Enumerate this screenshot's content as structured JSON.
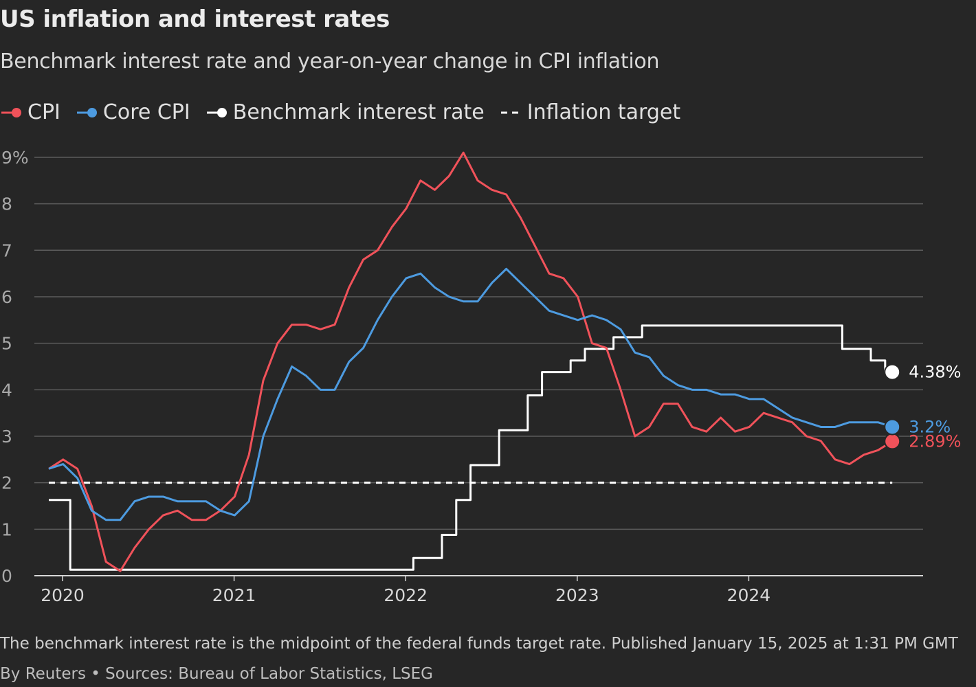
{
  "header": {
    "title": "US inflation and interest rates",
    "subtitle": "Benchmark interest rate and year-on-year change in CPI inflation"
  },
  "legend": {
    "items": [
      {
        "label": "CPI",
        "color": "#f0525a",
        "style": "line-dot"
      },
      {
        "label": "Core CPI",
        "color": "#4d9be0",
        "style": "line-dot"
      },
      {
        "label": "Benchmark interest rate",
        "color": "#ffffff",
        "style": "line-dot"
      },
      {
        "label": "Inflation target",
        "color": "#ffffff",
        "style": "dashed"
      }
    ]
  },
  "footer": {
    "note": "The benchmark interest rate is the midpoint of the federal funds target rate. Published January 15, 2025 at 1:31 PM GMT",
    "credit": "By Reuters • Sources: Bureau of Labor Statistics, LSEG"
  },
  "chart_data": {
    "type": "line",
    "title": "US inflation and interest rates",
    "subtitle": "Benchmark interest rate and year-on-year change in CPI inflation",
    "xlabel": "",
    "ylabel": "",
    "x_range": [
      "2020-01",
      "2024-12"
    ],
    "ylim": [
      0,
      9
    ],
    "y_ticks": [
      {
        "value": 0,
        "label": "0"
      },
      {
        "value": 1,
        "label": "1"
      },
      {
        "value": 2,
        "label": "2"
      },
      {
        "value": 3,
        "label": "3"
      },
      {
        "value": 4,
        "label": "4"
      },
      {
        "value": 5,
        "label": "5"
      },
      {
        "value": 6,
        "label": "6"
      },
      {
        "value": 7,
        "label": "7"
      },
      {
        "value": 8,
        "label": "8"
      },
      {
        "value": 9,
        "label": "9%"
      }
    ],
    "x_ticks": [
      {
        "value": "2020-01",
        "label": "2020"
      },
      {
        "value": "2021-01",
        "label": "2021"
      },
      {
        "value": "2022-01",
        "label": "2022"
      },
      {
        "value": "2023-01",
        "label": "2023"
      },
      {
        "value": "2024-01",
        "label": "2024"
      }
    ],
    "grid": true,
    "legend_position": "top-left",
    "months": [
      "2020-01",
      "2020-02",
      "2020-03",
      "2020-04",
      "2020-05",
      "2020-06",
      "2020-07",
      "2020-08",
      "2020-09",
      "2020-10",
      "2020-11",
      "2020-12",
      "2021-01",
      "2021-02",
      "2021-03",
      "2021-04",
      "2021-05",
      "2021-06",
      "2021-07",
      "2021-08",
      "2021-09",
      "2021-10",
      "2021-11",
      "2021-12",
      "2022-01",
      "2022-02",
      "2022-03",
      "2022-04",
      "2022-05",
      "2022-06",
      "2022-07",
      "2022-08",
      "2022-09",
      "2022-10",
      "2022-11",
      "2022-12",
      "2023-01",
      "2023-02",
      "2023-03",
      "2023-04",
      "2023-05",
      "2023-06",
      "2023-07",
      "2023-08",
      "2023-09",
      "2023-10",
      "2023-11",
      "2023-12",
      "2024-01",
      "2024-02",
      "2024-03",
      "2024-04",
      "2024-05",
      "2024-06",
      "2024-07",
      "2024-08",
      "2024-09",
      "2024-10",
      "2024-11",
      "2024-12"
    ],
    "series": [
      {
        "name": "CPI",
        "color": "#f0525a",
        "end_label": "2.89%",
        "values": [
          2.3,
          2.5,
          2.3,
          1.5,
          0.3,
          0.1,
          0.6,
          1.0,
          1.3,
          1.4,
          1.2,
          1.2,
          1.4,
          1.7,
          2.6,
          4.2,
          5.0,
          5.4,
          5.4,
          5.3,
          5.4,
          6.2,
          6.8,
          7.0,
          7.5,
          7.9,
          8.5,
          8.3,
          8.6,
          9.1,
          8.5,
          8.3,
          8.2,
          7.7,
          7.1,
          6.5,
          6.4,
          6.0,
          5.0,
          4.9,
          4.0,
          3.0,
          3.2,
          3.7,
          3.7,
          3.2,
          3.1,
          3.4,
          3.1,
          3.2,
          3.5,
          3.4,
          3.3,
          3.0,
          2.9,
          2.5,
          2.4,
          2.6,
          2.7,
          2.89
        ]
      },
      {
        "name": "Core CPI",
        "color": "#4d9be0",
        "end_label": "3.2%",
        "values": [
          2.3,
          2.4,
          2.1,
          1.4,
          1.2,
          1.2,
          1.6,
          1.7,
          1.7,
          1.6,
          1.6,
          1.6,
          1.4,
          1.3,
          1.6,
          3.0,
          3.8,
          4.5,
          4.3,
          4.0,
          4.0,
          4.6,
          4.9,
          5.5,
          6.0,
          6.4,
          6.5,
          6.2,
          6.0,
          5.9,
          5.9,
          6.3,
          6.6,
          6.3,
          6.0,
          5.7,
          5.6,
          5.5,
          5.6,
          5.5,
          5.3,
          4.8,
          4.7,
          4.3,
          4.1,
          4.0,
          4.0,
          3.9,
          3.9,
          3.8,
          3.8,
          3.6,
          3.4,
          3.3,
          3.2,
          3.2,
          3.3,
          3.3,
          3.3,
          3.2
        ]
      },
      {
        "name": "Benchmark interest rate",
        "color": "#ffffff",
        "step": true,
        "end_label": "4.38%",
        "values": [
          1.63,
          1.63,
          0.13,
          0.13,
          0.13,
          0.13,
          0.13,
          0.13,
          0.13,
          0.13,
          0.13,
          0.13,
          0.13,
          0.13,
          0.13,
          0.13,
          0.13,
          0.13,
          0.13,
          0.13,
          0.13,
          0.13,
          0.13,
          0.13,
          0.13,
          0.13,
          0.38,
          0.38,
          0.88,
          1.63,
          2.38,
          2.38,
          3.13,
          3.13,
          3.88,
          4.38,
          4.38,
          4.63,
          4.88,
          4.88,
          5.13,
          5.13,
          5.38,
          5.38,
          5.38,
          5.38,
          5.38,
          5.38,
          5.38,
          5.38,
          5.38,
          5.38,
          5.38,
          5.38,
          5.38,
          5.38,
          4.88,
          4.88,
          4.63,
          4.38
        ]
      },
      {
        "name": "Inflation target",
        "color": "#ffffff",
        "dashed": true,
        "values": [
          2,
          2,
          2,
          2,
          2,
          2,
          2,
          2,
          2,
          2,
          2,
          2,
          2,
          2,
          2,
          2,
          2,
          2,
          2,
          2,
          2,
          2,
          2,
          2,
          2,
          2,
          2,
          2,
          2,
          2,
          2,
          2,
          2,
          2,
          2,
          2,
          2,
          2,
          2,
          2,
          2,
          2,
          2,
          2,
          2,
          2,
          2,
          2,
          2,
          2,
          2,
          2,
          2,
          2,
          2,
          2,
          2,
          2,
          2,
          2
        ]
      }
    ]
  }
}
